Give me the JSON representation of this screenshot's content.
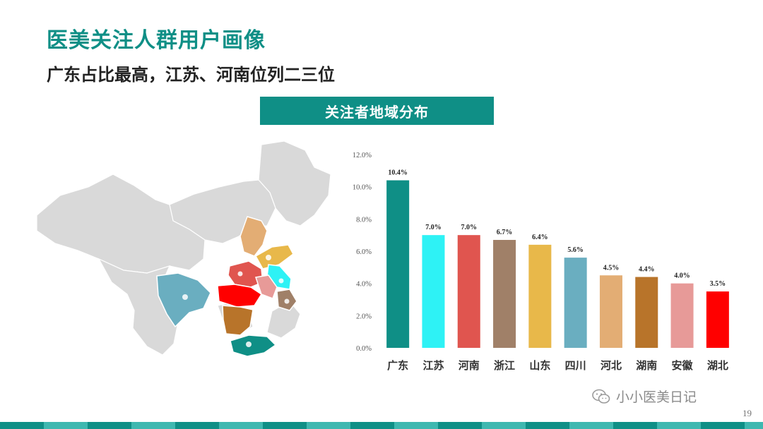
{
  "header": {
    "title": "医美关注人群用户画像",
    "subtitle": "广东占比最高，江苏、河南位列二三位"
  },
  "section_banner": "关注者地域分布",
  "colors": {
    "brand": "#0f8f86",
    "map_base": "#d9d9d9",
    "bars": [
      "#0f8f86",
      "#2ef2f5",
      "#e0554f",
      "#a08068",
      "#e8b84a",
      "#6aaec0",
      "#e3ad74",
      "#b8742a",
      "#e79a98",
      "#ff0000"
    ]
  },
  "chart_data": {
    "type": "bar",
    "title": "",
    "xlabel": "",
    "ylabel": "",
    "categories": [
      "广东",
      "江苏",
      "河南",
      "浙江",
      "山东",
      "四川",
      "河北",
      "湖南",
      "安徽",
      "湖北"
    ],
    "values": [
      10.4,
      7.0,
      7.0,
      6.7,
      6.4,
      5.6,
      4.5,
      4.4,
      4.0,
      3.5
    ],
    "data_labels": [
      "10.4%",
      "7.0%",
      "7.0%",
      "6.7%",
      "6.4%",
      "5.6%",
      "4.5%",
      "4.4%",
      "4.0%",
      "3.5%"
    ],
    "ylim": [
      0,
      12
    ],
    "yticks": [
      "0.0%",
      "2.0%",
      "4.0%",
      "6.0%",
      "8.0%",
      "10.0%",
      "12.0%"
    ],
    "grid": false,
    "legend": "none"
  },
  "map": {
    "highlighted_provinces": [
      "广东",
      "江苏",
      "河南",
      "浙江",
      "山东",
      "四川",
      "河北",
      "湖南",
      "安徽",
      "湖北"
    ]
  },
  "footer": {
    "watermark": "小小医美日记",
    "watermark_icon": "wechat-icon",
    "page_number": "19"
  }
}
